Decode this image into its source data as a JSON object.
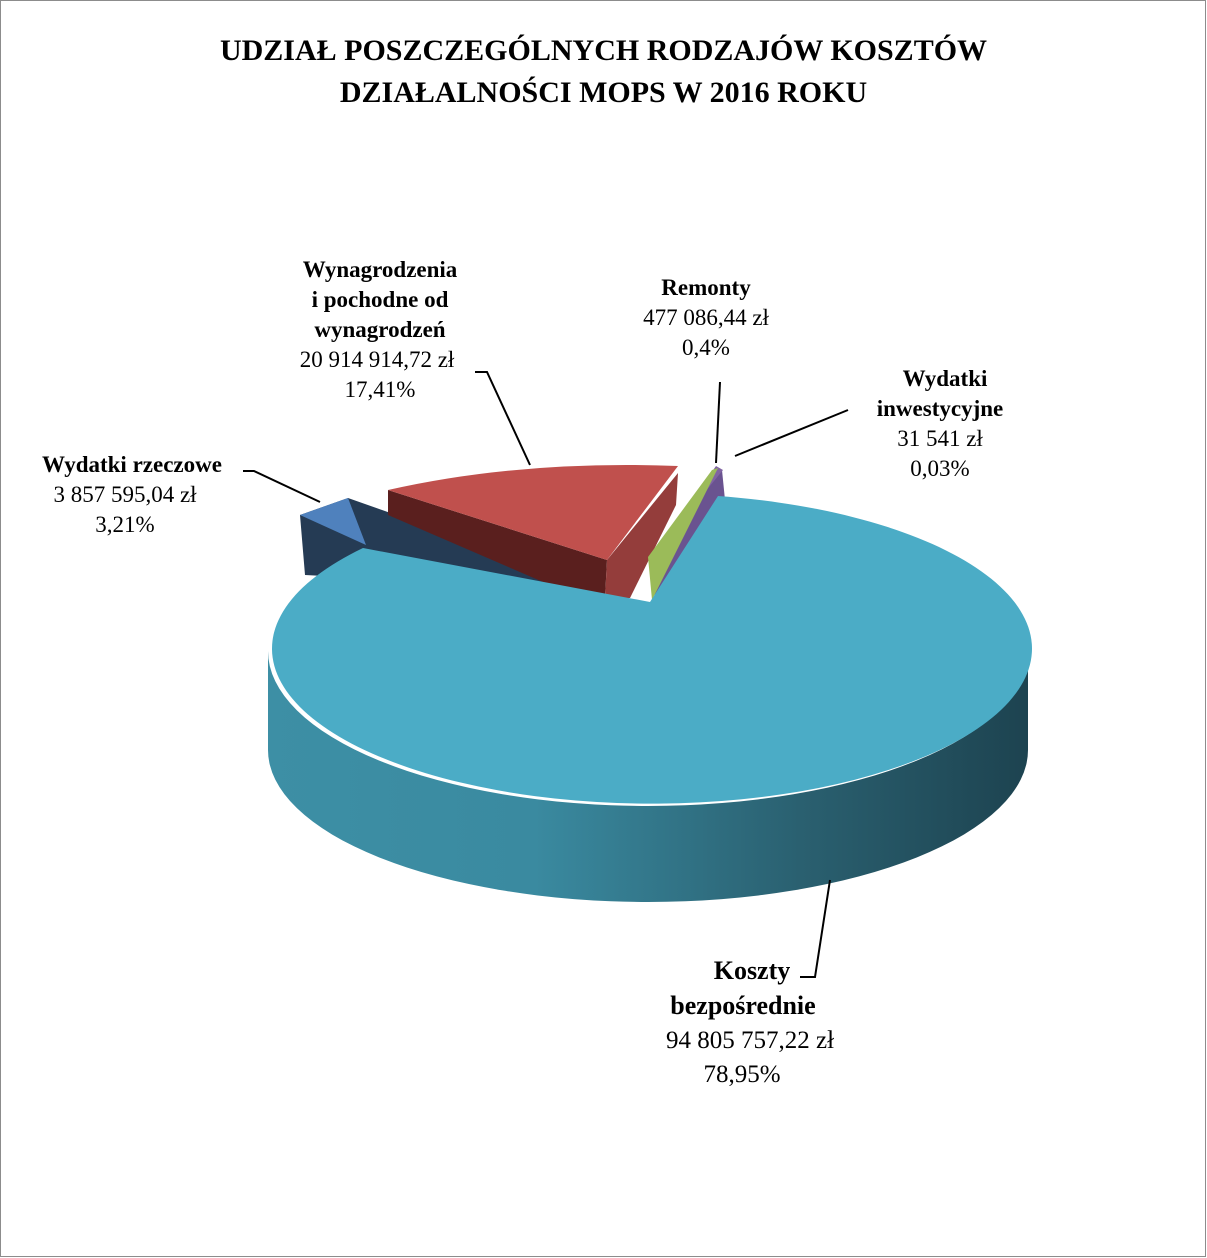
{
  "chart_data": {
    "type": "pie",
    "title_lines": [
      "UDZIAŁ POSZCZEGÓLNYCH RODZAJÓW KOSZTÓW",
      "DZIAŁALNOŚCI MOPS W 2016 ROKU"
    ],
    "style": "3d-exploded",
    "slices": [
      {
        "name_lines": [
          "Koszty",
          "bezpośrednie"
        ],
        "amount": "94 805 757,22 zł",
        "percent": "78,95%",
        "value": 78.95,
        "color": "#4bacc6"
      },
      {
        "name_lines": [
          "Wydatki rzeczowe"
        ],
        "amount": "3 857 595,04 zł",
        "percent": "3,21%",
        "value": 3.21,
        "color": "#4f81bd"
      },
      {
        "name_lines": [
          "Wynagrodzenia",
          "i pochodne od",
          "wynagrodzeń"
        ],
        "amount": "20 914 914,72 zł",
        "percent": "17,41%",
        "value": 17.41,
        "color": "#c0504d"
      },
      {
        "name_lines": [
          "Remonty"
        ],
        "amount": "477 086,44 zł",
        "percent": "0,4%",
        "value": 0.4,
        "color": "#8064a2"
      },
      {
        "name_lines": [
          "Wydatki",
          "inwestycyjne"
        ],
        "amount": "31 541 zł",
        "percent": "0,03%",
        "value": 0.03,
        "color": "#9bbb59"
      }
    ]
  }
}
